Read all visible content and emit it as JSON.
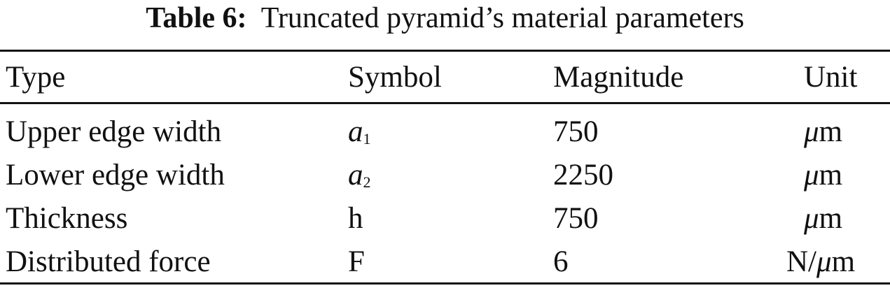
{
  "caption": {
    "label": "Table 6:",
    "text": "Truncated pyramid’s material parameters"
  },
  "headers": [
    "Type",
    "Symbol",
    "Magnitude",
    "Unit"
  ],
  "rows": [
    {
      "type": "Upper edge width",
      "symbol": "a",
      "symbol_sub": "1",
      "magnitude": "750",
      "unit_mu": "μ",
      "unit": "m"
    },
    {
      "type": "Lower edge width",
      "symbol": "a",
      "symbol_sub": "2",
      "magnitude": "2250",
      "unit_mu": "μ",
      "unit": "m"
    },
    {
      "type": "Thickness",
      "symbol": "h",
      "symbol_sub": "",
      "magnitude": "750",
      "unit_mu": "μ",
      "unit": "m"
    },
    {
      "type": "Distributed force",
      "symbol": "F",
      "symbol_sub": "",
      "magnitude": "6",
      "unit_prefix": "N/",
      "unit_mu": "μ",
      "unit": "m"
    }
  ]
}
